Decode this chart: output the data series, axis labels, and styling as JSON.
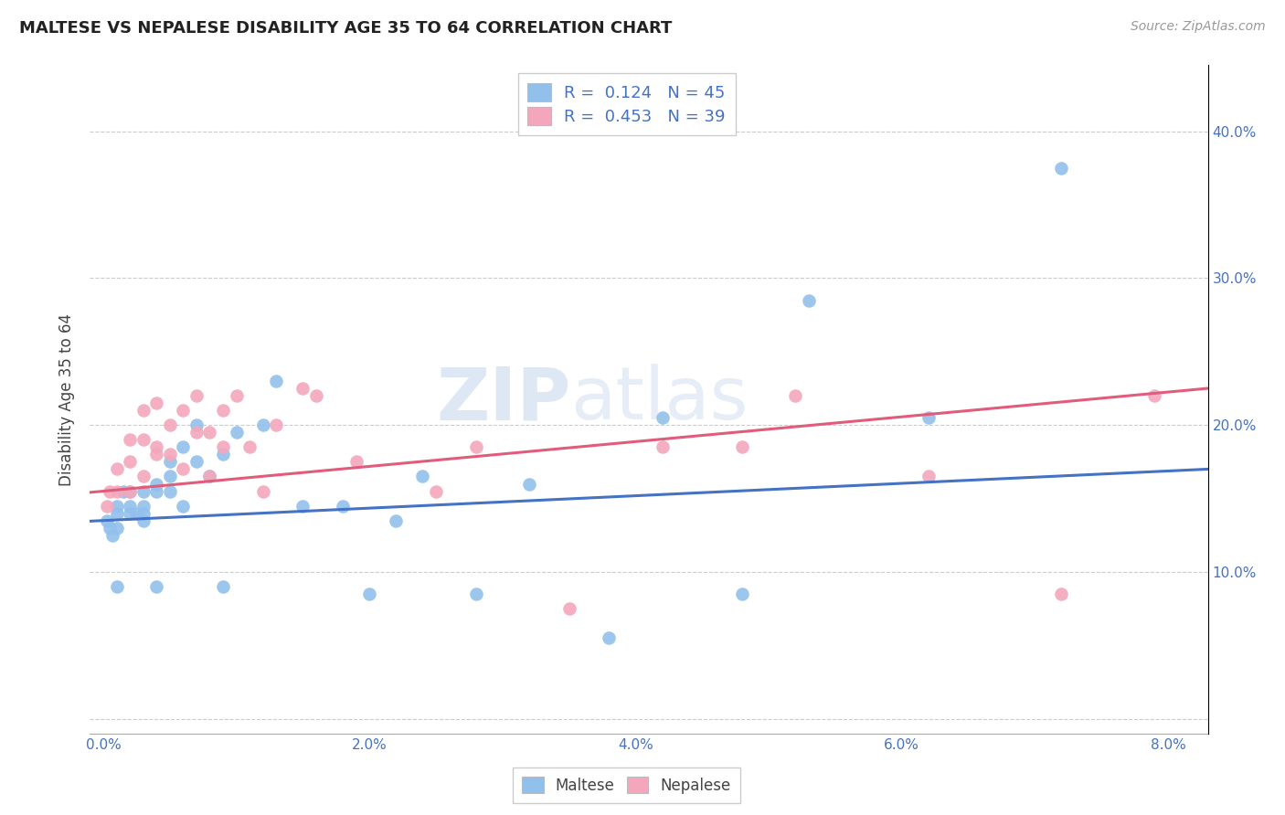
{
  "title": "MALTESE VS NEPALESE DISABILITY AGE 35 TO 64 CORRELATION CHART",
  "source": "Source: ZipAtlas.com",
  "ylabel": "Disability Age 35 to 64",
  "x_ticks": [
    0.0,
    0.01,
    0.02,
    0.03,
    0.04,
    0.05,
    0.06,
    0.07,
    0.08
  ],
  "x_tick_labels": [
    "0.0%",
    "",
    "2.0%",
    "",
    "4.0%",
    "",
    "6.0%",
    "",
    "8.0%"
  ],
  "y_ticks": [
    0.0,
    0.1,
    0.2,
    0.3,
    0.4
  ],
  "y_tick_labels_right": [
    "",
    "10.0%",
    "20.0%",
    "30.0%",
    "40.0%"
  ],
  "xlim": [
    -0.001,
    0.083
  ],
  "ylim": [
    -0.01,
    0.445
  ],
  "blue_R": "0.124",
  "blue_N": "45",
  "pink_R": "0.453",
  "pink_N": "39",
  "blue_color": "#92c0ec",
  "pink_color": "#f4a7bc",
  "blue_line_color": "#4472c4",
  "pink_line_color": "#e05c7a",
  "watermark_top": "ZIP",
  "watermark_bot": "atlas",
  "maltese_x": [
    0.0003,
    0.0005,
    0.0007,
    0.001,
    0.001,
    0.001,
    0.001,
    0.0015,
    0.002,
    0.002,
    0.002,
    0.0025,
    0.003,
    0.003,
    0.003,
    0.003,
    0.004,
    0.004,
    0.004,
    0.005,
    0.005,
    0.005,
    0.006,
    0.006,
    0.007,
    0.007,
    0.008,
    0.009,
    0.009,
    0.01,
    0.012,
    0.013,
    0.015,
    0.018,
    0.02,
    0.022,
    0.024,
    0.028,
    0.032,
    0.038,
    0.042,
    0.048,
    0.053,
    0.062,
    0.072
  ],
  "maltese_y": [
    0.135,
    0.13,
    0.125,
    0.14,
    0.13,
    0.145,
    0.09,
    0.155,
    0.14,
    0.145,
    0.155,
    0.14,
    0.135,
    0.155,
    0.14,
    0.145,
    0.16,
    0.155,
    0.09,
    0.155,
    0.165,
    0.175,
    0.145,
    0.185,
    0.175,
    0.2,
    0.165,
    0.18,
    0.09,
    0.195,
    0.2,
    0.23,
    0.145,
    0.145,
    0.085,
    0.135,
    0.165,
    0.085,
    0.16,
    0.055,
    0.205,
    0.085,
    0.285,
    0.205,
    0.375
  ],
  "nepalese_x": [
    0.0003,
    0.0005,
    0.001,
    0.001,
    0.002,
    0.002,
    0.002,
    0.003,
    0.003,
    0.003,
    0.004,
    0.004,
    0.004,
    0.005,
    0.005,
    0.006,
    0.006,
    0.007,
    0.007,
    0.008,
    0.008,
    0.009,
    0.009,
    0.01,
    0.011,
    0.012,
    0.013,
    0.015,
    0.016,
    0.019,
    0.025,
    0.028,
    0.035,
    0.042,
    0.048,
    0.052,
    0.062,
    0.072,
    0.079
  ],
  "nepalese_y": [
    0.145,
    0.155,
    0.17,
    0.155,
    0.155,
    0.19,
    0.175,
    0.19,
    0.21,
    0.165,
    0.185,
    0.215,
    0.18,
    0.2,
    0.18,
    0.21,
    0.17,
    0.195,
    0.22,
    0.195,
    0.165,
    0.21,
    0.185,
    0.22,
    0.185,
    0.155,
    0.2,
    0.225,
    0.22,
    0.175,
    0.155,
    0.185,
    0.075,
    0.185,
    0.185,
    0.22,
    0.165,
    0.085,
    0.22
  ]
}
